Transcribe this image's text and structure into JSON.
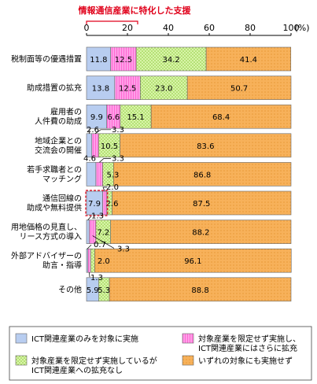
{
  "chart_data": {
    "type": "bar",
    "orientation": "horizontal",
    "stacked": true,
    "xlim": [
      0,
      100
    ],
    "x_ticks": [
      "0",
      "20",
      "40",
      "60",
      "80",
      "100"
    ],
    "x_unit": "(%)",
    "highlight_label": "情報通信産業に特化した支援",
    "categories": [
      [
        "税制面等の優遇措置"
      ],
      [
        "助成措置の拡充"
      ],
      [
        "雇用者の",
        "人件費の助成"
      ],
      [
        "地域企業との",
        "交流会の開催"
      ],
      [
        "若手求職者との",
        "マッチング"
      ],
      [
        "通信回線の",
        "助成や無料提供"
      ],
      [
        "用地価格の見直し、",
        "リース方式の導入"
      ],
      [
        "外部アドバイザーの",
        "助言・指導"
      ],
      [
        "その他"
      ]
    ],
    "series": [
      {
        "values": [
          11.8,
          13.8,
          9.9,
          2.6,
          4.6,
          7.9,
          1.3,
          0.7,
          5.9
        ],
        "color": "#b8cdf0"
      },
      {
        "values": [
          12.5,
          12.5,
          6.6,
          3.3,
          3.3,
          2.0,
          3.3,
          1.3,
          0.0
        ],
        "color": "#ff9ee8"
      },
      {
        "values": [
          34.2,
          23.0,
          15.1,
          10.5,
          5.3,
          2.6,
          7.2,
          2.0,
          5.3
        ],
        "color": "#c6ef8c"
      },
      {
        "values": [
          41.4,
          50.7,
          68.4,
          83.6,
          86.8,
          87.5,
          88.2,
          96.1,
          88.8
        ],
        "color": "#f7b15a"
      }
    ],
    "bar_labels": [
      [
        "11.8",
        "12.5",
        "34.2",
        "41.4"
      ],
      [
        "13.8",
        "12.5",
        "23.0",
        "50.7"
      ],
      [
        "9.9",
        "6.6",
        "15.1",
        "68.4"
      ],
      [
        "2.6",
        "3.3",
        "10.5",
        "83.6"
      ],
      [
        "4.6",
        "3.3",
        "5.3",
        "86.8"
      ],
      [
        "7.9",
        "2.0",
        "2.6",
        "87.5"
      ],
      [
        "1.3",
        "3.3",
        "7.2",
        "88.2"
      ],
      [
        "0.7",
        "1.3",
        "2.0",
        "96.1"
      ],
      [
        "5.9",
        "",
        "5.3",
        "88.8"
      ]
    ],
    "legend": [
      [
        "ICT関連産業のみを対象に実施"
      ],
      [
        "対象産業を限定せず実施し、",
        "ICT関連産業にはさらに拡充"
      ],
      [
        "対象産業を限定せず実施しているが",
        "ICT関連産業への拡充なし"
      ],
      [
        "いずれの対象にも実施せず"
      ]
    ]
  }
}
